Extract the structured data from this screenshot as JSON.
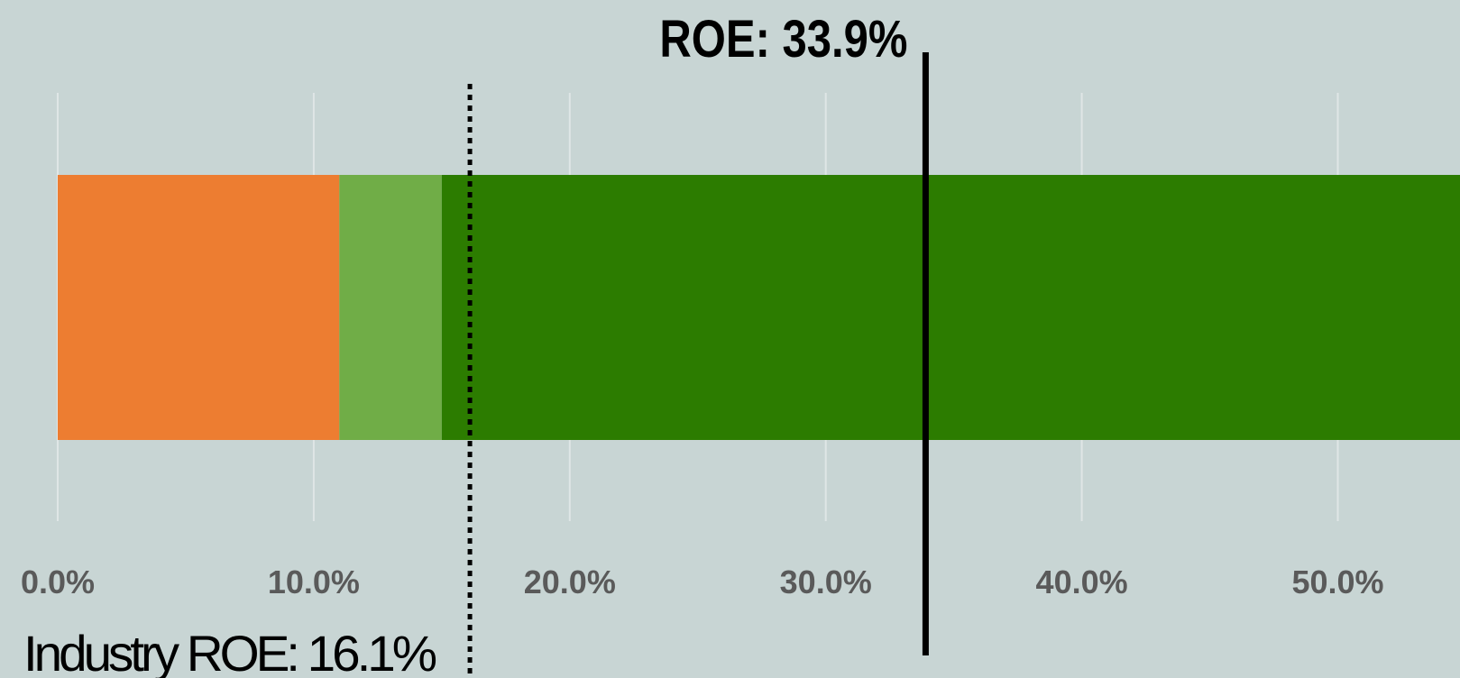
{
  "chart_data": {
    "type": "stacked_bar_horizontal",
    "series": [
      {
        "color": "#ed7d31",
        "values": [
          11.0
        ]
      },
      {
        "color": "#70ad47",
        "values": [
          4.0
        ]
      },
      {
        "color": "#2c7c00",
        "values": [
          40.0
        ]
      }
    ],
    "xlim": [
      0,
      55
    ],
    "xticks": [
      {
        "value": 0,
        "label": "0.0%"
      },
      {
        "value": 10,
        "label": "10.0%"
      },
      {
        "value": 20,
        "label": "20.0%"
      },
      {
        "value": 30,
        "label": "30.0%"
      },
      {
        "value": 40,
        "label": "40.0%"
      },
      {
        "value": 50,
        "label": "50.0%"
      }
    ],
    "grid": true,
    "annotations": [
      {
        "label": "Industry ROE: 16.1%",
        "value": 16.1,
        "style": "dotted"
      },
      {
        "label": "ROE: 33.9%",
        "value": 33.9,
        "style": "solid"
      }
    ]
  }
}
